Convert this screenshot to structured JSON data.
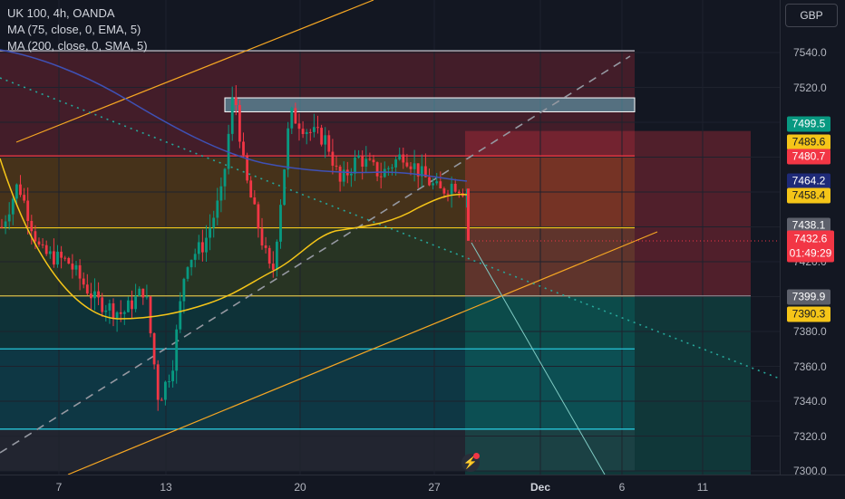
{
  "legend": {
    "symbol": "UK 100, 4h, OANDA",
    "ma1": "MA (75, close, 0, EMA, 5)",
    "ma2": "MA (200, close, 0, SMA, 5)"
  },
  "currency": "GBP",
  "chart_data": {
    "type": "candlestick",
    "symbol": "UK 100",
    "timeframe": "4h",
    "source": "OANDA",
    "y_range": [
      7300,
      7550
    ],
    "y_ticks": [
      "7540.0",
      "7520.0",
      "7500.0",
      "7480.0",
      "7460.0",
      "7440.0",
      "7420.0",
      "7400.0",
      "7380.0",
      "7360.0",
      "7340.0",
      "7320.0",
      "7300.0"
    ],
    "x_ticks": [
      {
        "label": "7",
        "bold": false
      },
      {
        "label": "13",
        "bold": false
      },
      {
        "label": "20",
        "bold": false
      },
      {
        "label": "27",
        "bold": false
      },
      {
        "label": "Dec",
        "bold": true
      },
      {
        "label": "6",
        "bold": false
      },
      {
        "label": "11",
        "bold": false
      }
    ],
    "last_price": {
      "value": "7432.6",
      "countdown": "01:49:29"
    },
    "price_tags": [
      {
        "value": "7499.5",
        "color": "#089981"
      },
      {
        "value": "7489.6",
        "color": "#f5c518"
      },
      {
        "value": "7480.7",
        "color": "#f23645"
      },
      {
        "value": "7464.2",
        "color": "#1e2a78"
      },
      {
        "value": "7458.4",
        "color": "#f5c518"
      },
      {
        "value": "7438.1",
        "color": "#5d606b"
      },
      {
        "value": "7399.9",
        "color": "#5d606b"
      },
      {
        "value": "7390.3",
        "color": "#f5c518"
      }
    ],
    "horizontal_levels": [
      {
        "price": 7541,
        "color": "#b2b5be"
      },
      {
        "price": 7480.7,
        "color": "#f23645"
      },
      {
        "price": 7439.5,
        "color": "#f5c518"
      },
      {
        "price": 7400.4,
        "color": "#d4c14a"
      },
      {
        "price": 7370,
        "color": "#26c6da"
      },
      {
        "price": 7324,
        "color": "#26c6da"
      }
    ],
    "resistance_box": [
      7506,
      7514
    ],
    "position_tool": {
      "entry": 7400.4,
      "stop": 7480.7,
      "target": 7300
    }
  }
}
